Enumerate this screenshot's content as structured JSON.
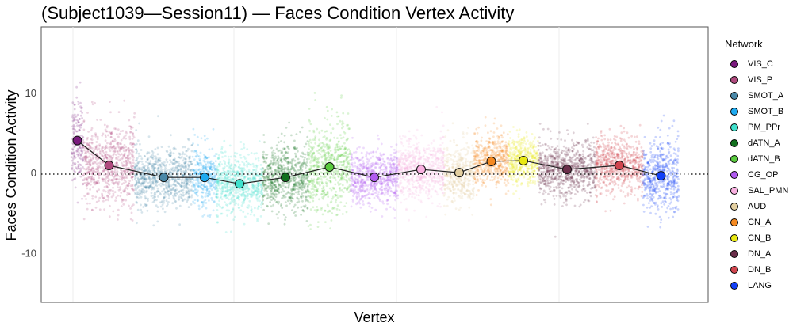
{
  "chart_data": {
    "type": "scatter",
    "title": "(Subject1039—Session11) — Faces Condition Vertex Activity",
    "xlabel": "Vertex",
    "ylabel": "Faces Condition Activity",
    "ylim": [
      -16.2,
      18.2
    ],
    "yticks": [
      10,
      0,
      -10
    ],
    "reference_line": 0,
    "grid": true,
    "legend_title": "Network",
    "legend_position": "right",
    "networks": [
      {
        "name": "VIS_C",
        "color": "#7B1A7E",
        "mean": 4.0,
        "sd": 2.6,
        "start": 0,
        "end": 15
      },
      {
        "name": "VIS_P",
        "color": "#B04A7E",
        "mean": 0.9,
        "sd": 2.6,
        "start": 15,
        "end": 80
      },
      {
        "name": "SMOT_A",
        "color": "#4A88A8",
        "mean": -0.6,
        "sd": 1.8,
        "start": 80,
        "end": 153
      },
      {
        "name": "SMOT_B",
        "color": "#1EAAF0",
        "mean": -0.6,
        "sd": 1.8,
        "start": 153,
        "end": 183
      },
      {
        "name": "PM_PPr",
        "color": "#3FE0CC",
        "mean": -1.4,
        "sd": 1.8,
        "start": 183,
        "end": 241
      },
      {
        "name": "dATN_A",
        "color": "#12701E",
        "mean": -0.6,
        "sd": 2.0,
        "start": 241,
        "end": 299
      },
      {
        "name": "dATN_B",
        "color": "#5ACB3E",
        "mean": 0.7,
        "sd": 2.8,
        "start": 299,
        "end": 352
      },
      {
        "name": "CG_OP",
        "color": "#B15BF0",
        "mean": -0.6,
        "sd": 1.6,
        "start": 352,
        "end": 412
      },
      {
        "name": "SAL_PMN",
        "color": "#F8B0E0",
        "mean": 0.4,
        "sd": 1.8,
        "start": 412,
        "end": 470
      },
      {
        "name": "AUD",
        "color": "#E3CFA0",
        "mean": 0.0,
        "sd": 1.8,
        "start": 470,
        "end": 508
      },
      {
        "name": "CN_A",
        "color": "#F58A22",
        "mean": 1.4,
        "sd": 1.6,
        "start": 508,
        "end": 551
      },
      {
        "name": "CN_B",
        "color": "#E8E812",
        "mean": 1.5,
        "sd": 1.5,
        "start": 551,
        "end": 589
      },
      {
        "name": "DN_A",
        "color": "#6A2E4A",
        "mean": 0.4,
        "sd": 1.7,
        "start": 589,
        "end": 661
      },
      {
        "name": "DN_B",
        "color": "#D0454E",
        "mean": 0.9,
        "sd": 1.7,
        "start": 661,
        "end": 721
      },
      {
        "name": "LANG",
        "color": "#1240F8",
        "mean": -0.4,
        "sd": 2.2,
        "start": 721,
        "end": 766
      }
    ]
  }
}
